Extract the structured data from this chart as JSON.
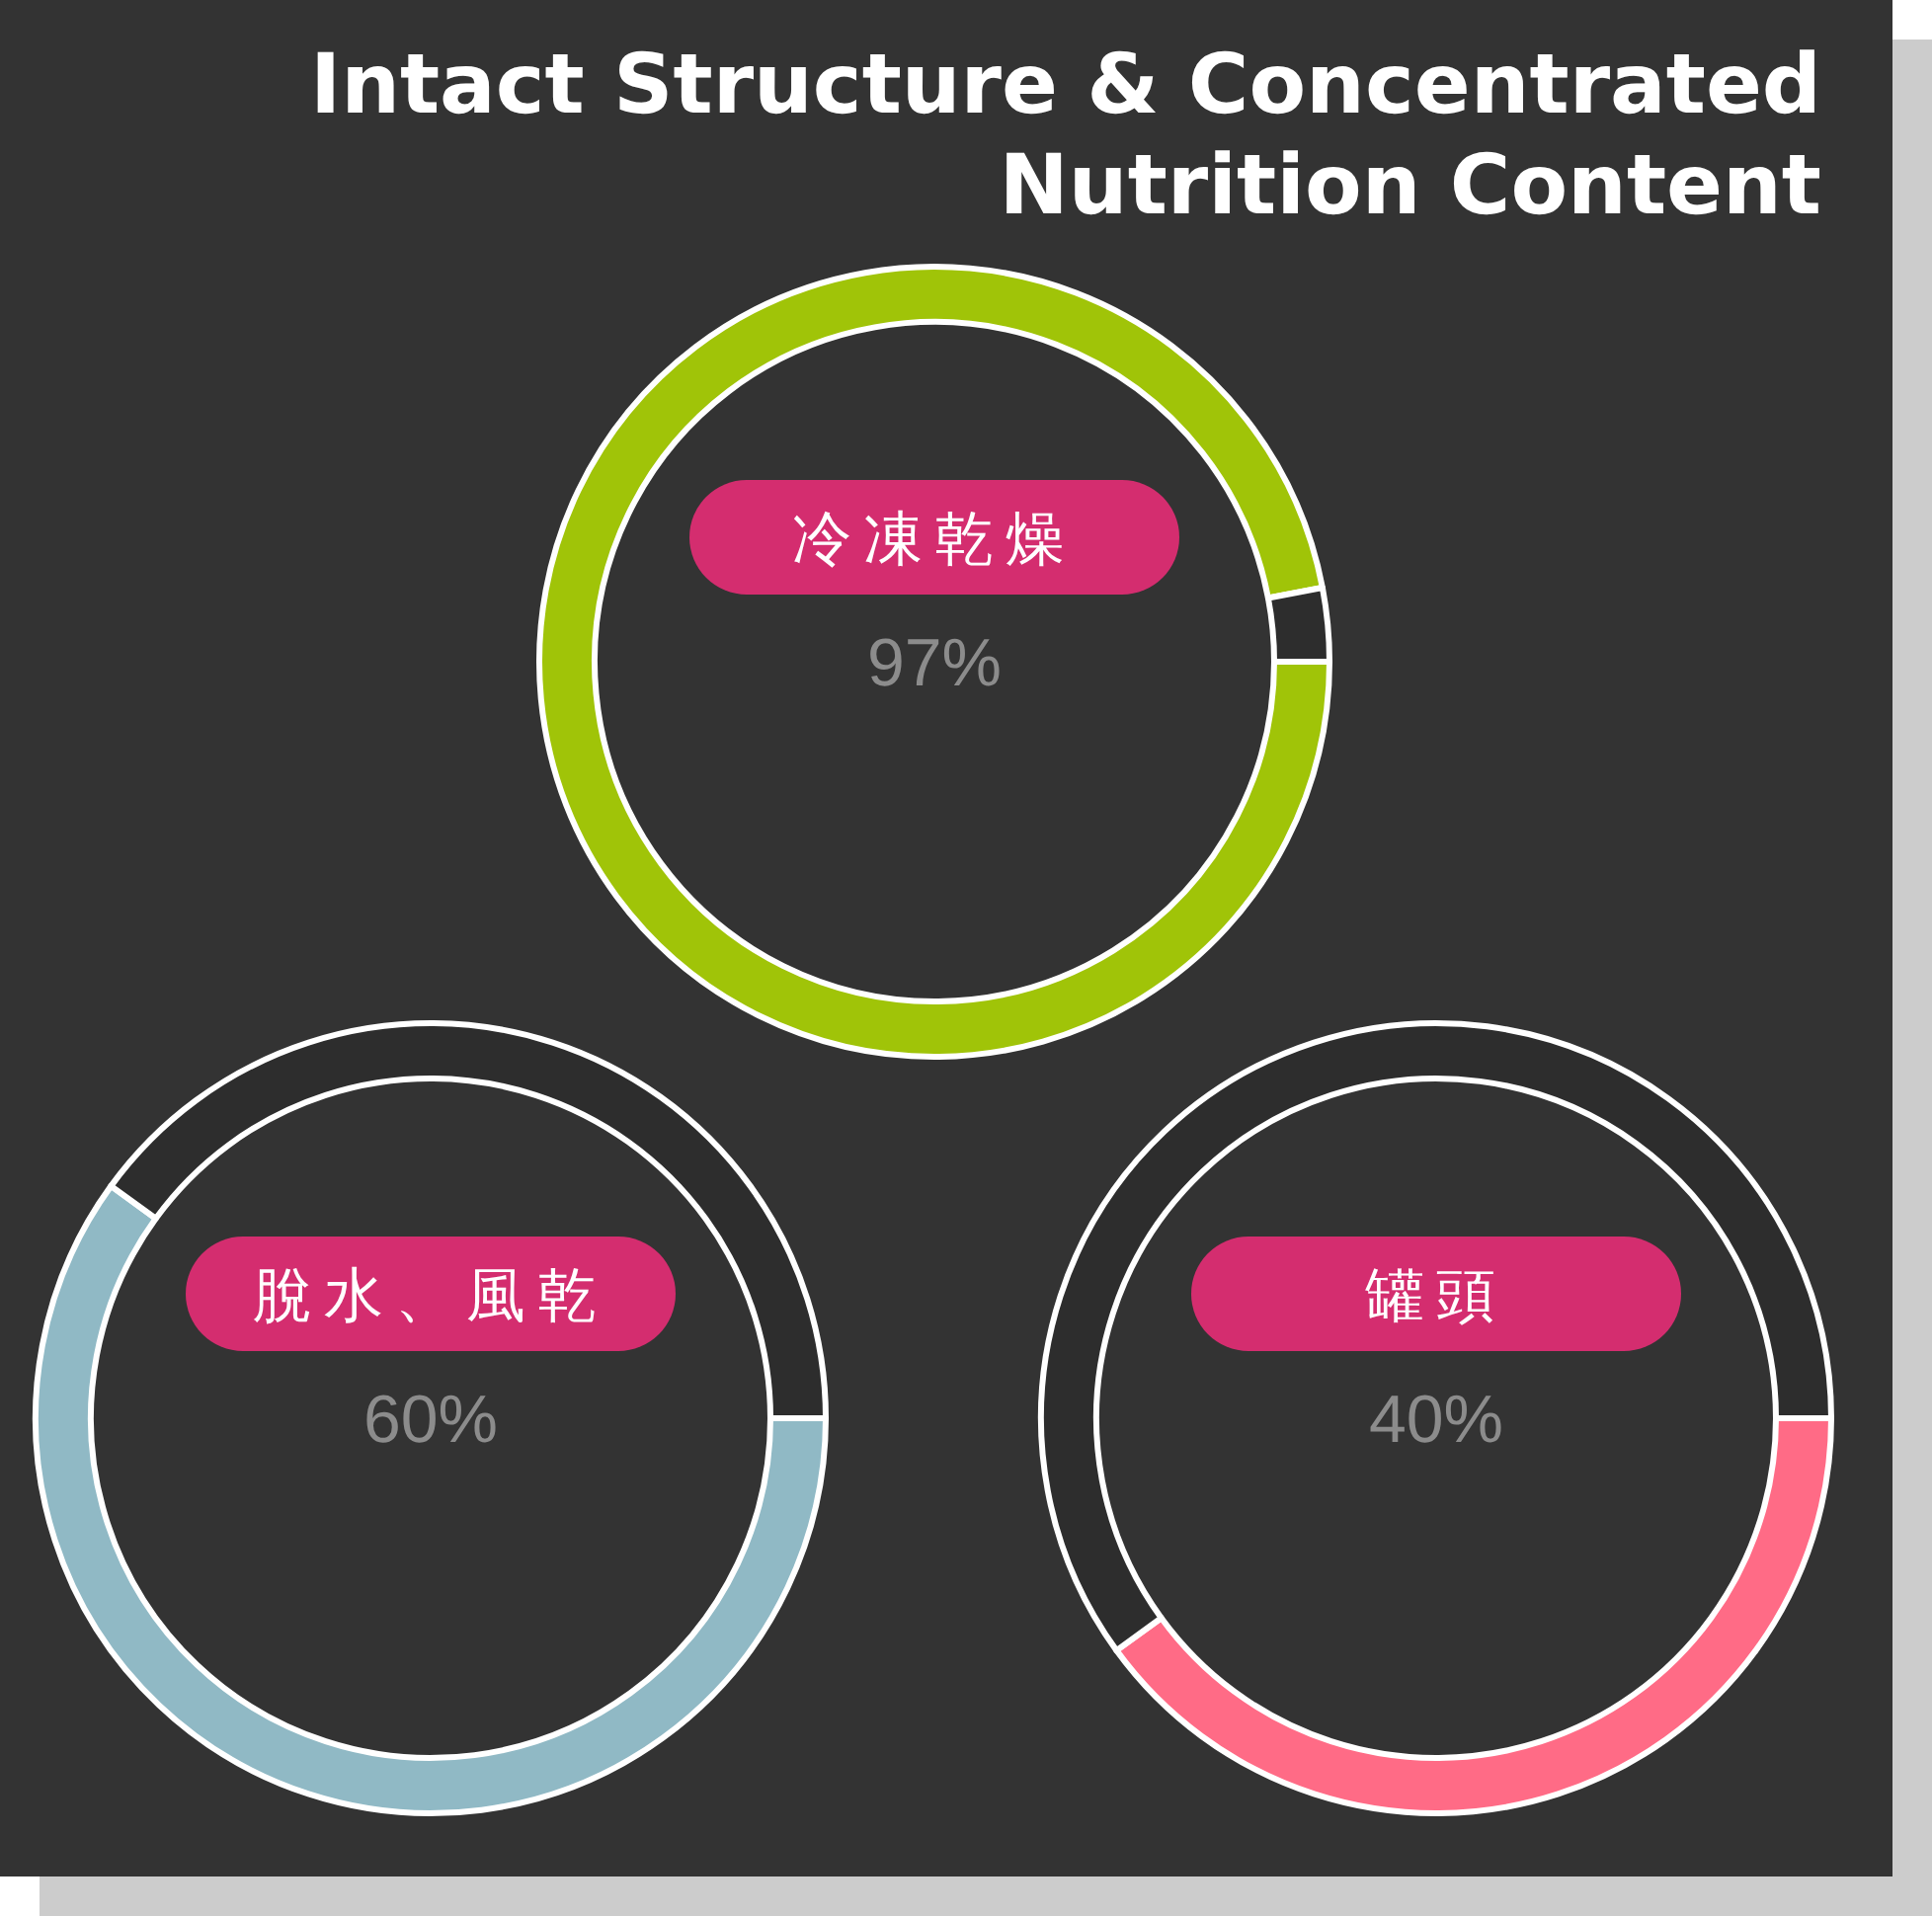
{
  "chart_data": [
    {
      "type": "donut",
      "title": "Intact Structure & Concentrated\nNutrition Content",
      "categories": [
        "冷凍乾燥",
        null
      ],
      "values": [
        97,
        3
      ],
      "colors": [
        "#a0c408",
        "#2d2d2d"
      ],
      "value_labels": [
        "97%",
        null
      ]
    },
    {
      "type": "donut",
      "categories": [
        "脫水、風乾",
        null
      ],
      "values": [
        60,
        40
      ],
      "colors": [
        "#90b9c5",
        "#2d2d2d"
      ],
      "value_labels": [
        "60%",
        null
      ]
    },
    {
      "type": "donut",
      "categories": [
        "罐頭",
        null
      ],
      "values": [
        40,
        60
      ],
      "colors": [
        "#ff6b86",
        "#2d2d2d"
      ],
      "value_labels": [
        "40%",
        null
      ]
    }
  ]
}
